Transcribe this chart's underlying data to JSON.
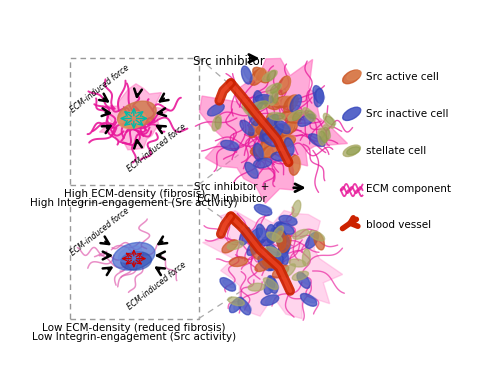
{
  "bg_color": "#ffffff",
  "top_label": "Src inhibitor",
  "bottom_label": "Src inhibitor +\nECM inhibitor",
  "top_caption1": "High ECM-density (fibrosis)",
  "top_caption2": "High Integrin-engagement (Src activity)",
  "bot_caption1": "Low ECM-density (reduced fibrosis)",
  "bot_caption2": "Low Integrin-engagement (Src activity)",
  "legend_labels": [
    "Src active cell",
    "Src inactive cell",
    "stellate cell",
    "ECM component",
    "blood vessel"
  ],
  "ecm_color_dense": "#e8189a",
  "ecm_color_sparse": "#e060b0",
  "src_active_color": "#cc4422",
  "src_inactive_color": "#3344bb",
  "stellate_color": "#778833",
  "blood_vessel_color": "#cc2200",
  "arrow_color": "#111111",
  "dashed_box_color": "#999999",
  "integrin_color_top": "#00bbaa",
  "integrin_color_bot": "#cc0000",
  "pink_glow": "#ff66bb",
  "cell_pink": "#dd44aa"
}
